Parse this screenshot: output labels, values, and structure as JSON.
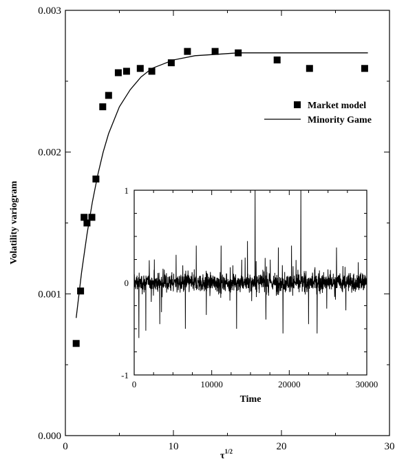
{
  "chart_data": [
    {
      "type": "scatter",
      "xlabel": "τ",
      "xlabel_sup": "1/2",
      "ylabel": "Volatility variogram",
      "xlim": [
        0,
        30
      ],
      "ylim": [
        0.0,
        0.003
      ],
      "xticks": [
        "0",
        "10",
        "20",
        "30"
      ],
      "yticks": [
        "0.000",
        "0.001",
        "0.002",
        "0.003"
      ],
      "grid": false,
      "legend_position": "right",
      "series": [
        {
          "name": "Market model",
          "marker": "square",
          "x": [
            1.0,
            1.41,
            1.73,
            2.0,
            2.45,
            2.83,
            3.46,
            4.0,
            4.9,
            5.66,
            6.93,
            8.0,
            9.8,
            11.3,
            13.86,
            16.0,
            19.6,
            22.6,
            27.7
          ],
          "y": [
            0.00065,
            0.00102,
            0.00154,
            0.0015,
            0.00154,
            0.00181,
            0.00232,
            0.0024,
            0.00256,
            0.00257,
            0.00259,
            0.00257,
            0.00263,
            0.00271,
            0.00271,
            0.0027,
            0.00265,
            0.00259,
            0.00259
          ]
        },
        {
          "name": "Minority Game",
          "line": "solid",
          "x": [
            1.0,
            1.5,
            2.0,
            2.5,
            3.0,
            3.5,
            4.0,
            5.0,
            6.0,
            7.0,
            8.0,
            9.0,
            10.0,
            12.0,
            14.0,
            16.0,
            18.0,
            20.0,
            24.0,
            28.0
          ],
          "y": [
            0.00083,
            0.00115,
            0.00142,
            0.00165,
            0.00184,
            0.002,
            0.00213,
            0.00232,
            0.00244,
            0.00253,
            0.00259,
            0.00262,
            0.00265,
            0.00268,
            0.00269,
            0.0027,
            0.0027,
            0.0027,
            0.0027,
            0.0027
          ]
        }
      ]
    },
    {
      "type": "line",
      "xlabel": "Time",
      "xlim": [
        0,
        30000
      ],
      "ylim": [
        -1,
        1
      ],
      "xticks": [
        "0",
        "10000",
        "20000",
        "30000"
      ],
      "yticks": [
        "-1",
        "0",
        "1"
      ],
      "grid": false,
      "series": [
        {
          "n_points": 1500,
          "mean": 0.0,
          "std": 0.05,
          "spikes": [
            {
              "x": 600,
              "y": -0.6
            },
            {
              "x": 1500,
              "y": -0.52
            },
            {
              "x": 2600,
              "y": 0.25
            },
            {
              "x": 3300,
              "y": -0.45
            },
            {
              "x": 5400,
              "y": 0.3
            },
            {
              "x": 6600,
              "y": -0.5
            },
            {
              "x": 8000,
              "y": 0.4
            },
            {
              "x": 9300,
              "y": -0.35
            },
            {
              "x": 11200,
              "y": 0.4
            },
            {
              "x": 13200,
              "y": -0.5
            },
            {
              "x": 14600,
              "y": 0.45
            },
            {
              "x": 15600,
              "y": 1.0
            },
            {
              "x": 17000,
              "y": -0.4
            },
            {
              "x": 18600,
              "y": 0.38
            },
            {
              "x": 19200,
              "y": -0.55
            },
            {
              "x": 20300,
              "y": 0.4
            },
            {
              "x": 21500,
              "y": 1.0
            },
            {
              "x": 22500,
              "y": -0.45
            },
            {
              "x": 23600,
              "y": -0.55
            },
            {
              "x": 26100,
              "y": 0.38
            },
            {
              "x": 27300,
              "y": -0.3
            },
            {
              "x": 28900,
              "y": 0.22
            }
          ]
        }
      ]
    }
  ]
}
